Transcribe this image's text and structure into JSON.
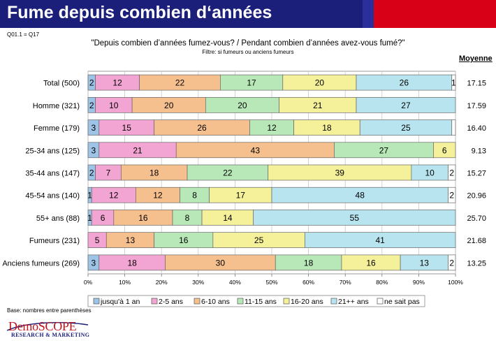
{
  "header": {
    "title": "Fume depuis combien d‘années"
  },
  "question_code": "Q01.1 = Q17",
  "question": "\"Depuis combien d’années fumez-vous? / Pendant combien d’années avez-vous fumé?\"",
  "filter": "Filtre: si fumeurs ou anciens fumeurs",
  "mean_header": "Moyenne",
  "base_note": "Base: nombres entre parenthèses",
  "logo": {
    "main": "DemoSCOPE",
    "sub": "RESEARCH & MARKETING"
  },
  "colors": {
    "jusqua_1_an": "#9dc3e6",
    "2_5_ans": "#f2a5d2",
    "6_10_ans": "#f5c08e",
    "11_15_ans": "#b8e8b8",
    "16_20_ans": "#f5f09a",
    "21_plus_ans": "#b8e4ef",
    "ne_sait_pas": "#ffffff",
    "header": "#1b1f7a",
    "header_red": "#d80016"
  },
  "chart_data": {
    "type": "bar",
    "orientation": "horizontal",
    "stacked": "percent",
    "categories": [
      "Total (500)",
      "Homme (321)",
      "Femme (179)",
      "25-34 ans (125)",
      "35-44 ans (147)",
      "45-54 ans (140)",
      "55+ ans (88)",
      "Fumeurs (231)",
      "Anciens fumeurs (269)"
    ],
    "series": [
      {
        "name": "jusqu'à 1 an",
        "values": [
          2,
          2,
          3,
          3,
          2,
          1,
          1,
          0,
          3
        ],
        "labels": [
          "2",
          "2",
          "3",
          "3",
          "2",
          "1",
          "1",
          "",
          "3"
        ]
      },
      {
        "name": "2-5 ans",
        "values": [
          12,
          10,
          15,
          21,
          7,
          12,
          6,
          5,
          18
        ],
        "labels": [
          "12",
          "10",
          "15",
          "21",
          "7",
          "12",
          "6",
          "5",
          "18"
        ]
      },
      {
        "name": "6-10 ans",
        "values": [
          22,
          20,
          26,
          43,
          18,
          12,
          16,
          13,
          30
        ],
        "labels": [
          "22",
          "20",
          "26",
          "43",
          "18",
          "12",
          "16",
          "13",
          "30"
        ]
      },
      {
        "name": "11-15 ans",
        "values": [
          17,
          20,
          12,
          27,
          22,
          8,
          8,
          16,
          18
        ],
        "labels": [
          "17",
          "20",
          "12",
          "27",
          "22",
          "8",
          "8",
          "16",
          "18"
        ]
      },
      {
        "name": "16-20 ans",
        "values": [
          20,
          21,
          18,
          6,
          39,
          17,
          14,
          25,
          16
        ],
        "labels": [
          "20",
          "21",
          "18",
          "6",
          "39",
          "17",
          "14",
          "25",
          "16"
        ]
      },
      {
        "name": "21++ ans",
        "values": [
          26,
          27,
          25,
          0,
          10,
          48,
          55,
          41,
          13
        ],
        "labels": [
          "26",
          "27",
          "25",
          "",
          "10",
          "48",
          "55",
          "41",
          "13"
        ]
      },
      {
        "name": "ne sait pas",
        "values": [
          1,
          0,
          1,
          0,
          2,
          2,
          0,
          0,
          2
        ],
        "labels": [
          "1",
          "",
          "",
          "",
          "2",
          "2",
          "",
          "",
          "2"
        ]
      }
    ],
    "means": [
      "17.15",
      "17.59",
      "16.40",
      "9.13",
      "15.27",
      "20.96",
      "25.70",
      "21.68",
      "13.25"
    ],
    "xticks": [
      "0%",
      "10%",
      "20%",
      "30%",
      "40%",
      "50%",
      "60%",
      "70%",
      "80%",
      "90%",
      "100%"
    ],
    "xlim": [
      0,
      100
    ],
    "grid": true,
    "legend_position": "bottom"
  }
}
